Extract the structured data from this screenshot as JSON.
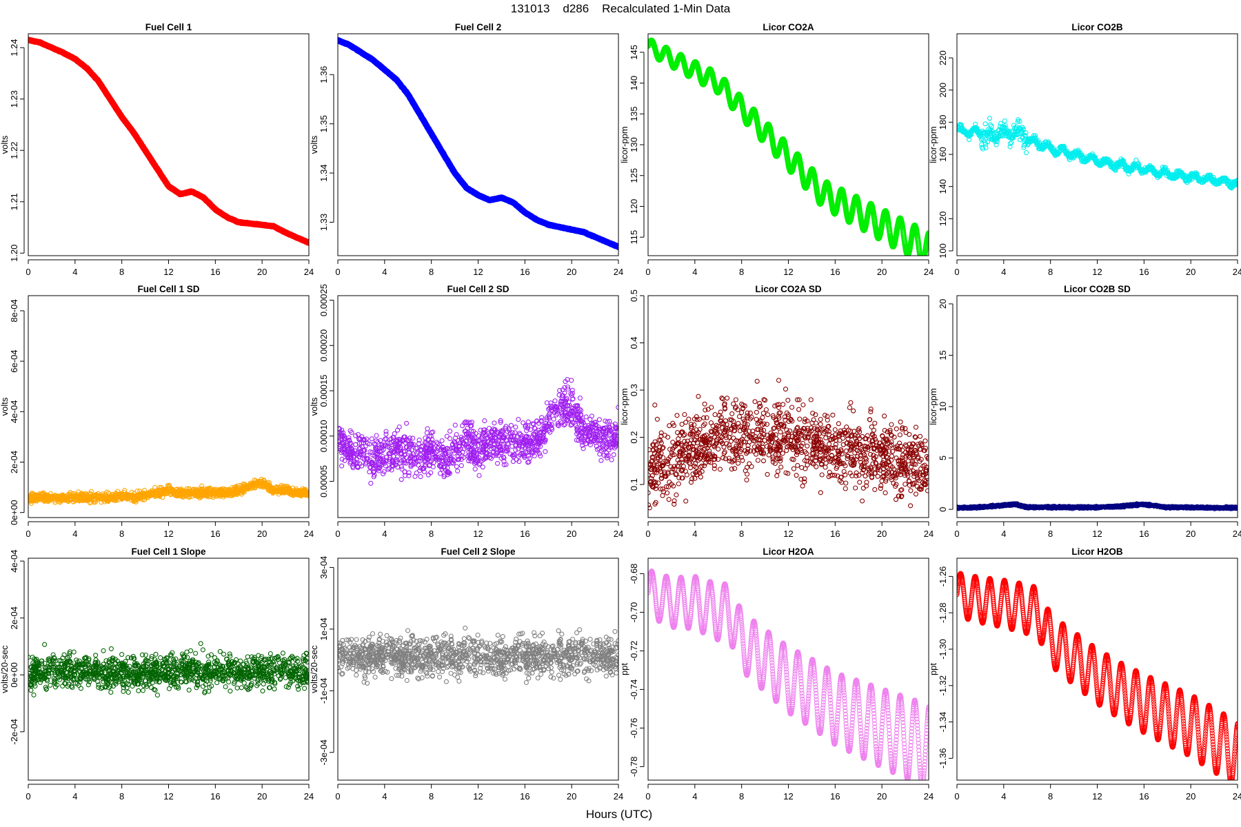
{
  "figure": {
    "title": "131013    d286    Recalculated 1-Min Data",
    "xlabel": "Hours (UTC)"
  },
  "chart_data": [
    {
      "type": "scatter",
      "title": "Fuel Cell 1",
      "ylabel": "volts",
      "color": "#ff0000",
      "xlim": [
        0,
        24
      ],
      "xticks": [
        "0",
        "4",
        "8",
        "12",
        "16",
        "20",
        "24"
      ],
      "ylim": [
        1.1995,
        1.2427
      ],
      "yticks": [
        "1.20",
        "1.21",
        "1.22",
        "1.23",
        "1.24"
      ],
      "ytick_values": [
        1.2,
        1.21,
        1.22,
        1.23,
        1.24
      ],
      "x": [
        0,
        1,
        2,
        3,
        4,
        5,
        6,
        7,
        8,
        9,
        10,
        11,
        12,
        13,
        14,
        15,
        16,
        17,
        18,
        20,
        21,
        22,
        23,
        24
      ],
      "y": [
        1.2415,
        1.241,
        1.24,
        1.239,
        1.2378,
        1.236,
        1.2335,
        1.23,
        1.2265,
        1.2235,
        1.22,
        1.2165,
        1.213,
        1.2115,
        1.212,
        1.2108,
        1.2085,
        1.207,
        1.206,
        1.2055,
        1.2052,
        1.204,
        1.203,
        1.202
      ]
    },
    {
      "type": "scatter",
      "title": "Fuel Cell 2",
      "ylabel": "volts",
      "color": "#0000ff",
      "xlim": [
        0,
        24
      ],
      "xticks": [
        "0",
        "4",
        "8",
        "12",
        "16",
        "20",
        "24"
      ],
      "ylim": [
        1.3232,
        1.3683
      ],
      "yticks": [
        "1.33",
        "1.34",
        "1.35",
        "1.36"
      ],
      "ytick_values": [
        1.33,
        1.34,
        1.35,
        1.36
      ],
      "x": [
        0,
        1,
        2,
        3,
        4,
        5,
        6,
        7,
        8,
        9,
        10,
        11,
        12,
        13,
        14,
        15,
        16,
        17,
        18,
        20,
        21,
        22,
        23,
        24
      ],
      "y": [
        1.367,
        1.366,
        1.3645,
        1.363,
        1.361,
        1.359,
        1.356,
        1.352,
        1.348,
        1.344,
        1.34,
        1.337,
        1.3355,
        1.3345,
        1.335,
        1.334,
        1.332,
        1.3305,
        1.3295,
        1.3285,
        1.328,
        1.327,
        1.326,
        1.325
      ]
    },
    {
      "type": "scatter",
      "title": "Licor CO2A",
      "ylabel": "licor-ppm",
      "color": "#00ee00",
      "xlim": [
        0,
        24
      ],
      "xticks": [
        "0",
        "4",
        "8",
        "12",
        "16",
        "20",
        "24"
      ],
      "ylim": [
        112,
        148
      ],
      "yticks": [
        "115",
        "120",
        "125",
        "130",
        "135",
        "140",
        "145"
      ],
      "ytick_values": [
        115,
        120,
        125,
        130,
        135,
        140,
        145
      ],
      "x": [
        0,
        1,
        2,
        3,
        4,
        5,
        6,
        7,
        8,
        9,
        10,
        11,
        12,
        13,
        14,
        15,
        16,
        17,
        18,
        19,
        20,
        21,
        22,
        23,
        24
      ],
      "y": [
        146,
        145,
        144,
        143,
        142,
        141,
        140,
        138,
        136,
        134,
        132,
        130,
        128,
        126,
        124,
        122,
        121,
        120,
        119,
        118,
        117,
        116,
        115,
        114,
        113
      ]
    },
    {
      "type": "scatter",
      "title": "Licor CO2B",
      "ylabel": "licor-ppm",
      "color": "#00eeee",
      "xlim": [
        0,
        24
      ],
      "xticks": [
        "0",
        "4",
        "8",
        "12",
        "16",
        "20",
        "24"
      ],
      "ylim": [
        97,
        235
      ],
      "yticks": [
        "100",
        "120",
        "140",
        "160",
        "180",
        "200",
        "220"
      ],
      "ytick_values": [
        100,
        120,
        140,
        160,
        180,
        200,
        220
      ],
      "x": [
        0,
        1,
        2,
        3,
        4,
        5,
        6,
        7,
        8,
        9,
        10,
        11,
        12,
        13,
        14,
        15,
        16,
        17,
        18,
        19,
        20,
        21,
        22,
        23,
        24
      ],
      "y": [
        175,
        174,
        173,
        172,
        173,
        174,
        170,
        167,
        164,
        162,
        160,
        158,
        156,
        154,
        153,
        152,
        151,
        149,
        148,
        147,
        146,
        145,
        144,
        143,
        142
      ]
    },
    {
      "type": "scatter",
      "title": "Fuel Cell 1 SD",
      "ylabel": "volts",
      "color": "#ffa500",
      "xlim": [
        0,
        24
      ],
      "xticks": [
        "0",
        "4",
        "8",
        "12",
        "16",
        "20",
        "24"
      ],
      "ylim": [
        -2e-05,
        0.00086
      ],
      "yticks": [
        "0e+00",
        "2e-04",
        "4e-04",
        "6e-04",
        "8e-04"
      ],
      "ytick_values": [
        0,
        0.0002,
        0.0004,
        0.0006,
        0.0008
      ],
      "x": [
        0,
        1,
        2,
        3,
        4,
        5,
        6,
        7,
        8,
        9,
        10,
        11,
        12,
        13,
        14,
        15,
        16,
        17,
        18,
        19,
        20,
        21,
        22,
        23,
        24
      ],
      "y": [
        5e-05,
        5e-05,
        5e-05,
        5e-05,
        5e-05,
        5e-05,
        5e-05,
        5e-05,
        6e-05,
        5e-05,
        6e-05,
        7e-05,
        8e-05,
        7e-05,
        7e-05,
        7e-05,
        7e-05,
        7e-05,
        8e-05,
        0.0001,
        0.00011,
        8e-05,
        8e-05,
        7e-05,
        7e-05
      ]
    },
    {
      "type": "scatter",
      "title": "Fuel Cell 2 SD",
      "ylabel": "volts",
      "color": "#a020f0",
      "xlim": [
        0,
        24
      ],
      "xticks": [
        "0",
        "4",
        "8",
        "12",
        "16",
        "20",
        "24"
      ],
      "ylim": [
        1e-05,
        0.000255
      ],
      "yticks": [
        "0.00005",
        "0.00010",
        "0.00015",
        "0.00020",
        "0.00025"
      ],
      "ytick_values": [
        5e-05,
        0.0001,
        0.00015,
        0.0002,
        0.00025
      ],
      "x": [
        0,
        1,
        2,
        3,
        4,
        5,
        6,
        7,
        8,
        9,
        10,
        11,
        12,
        13,
        14,
        15,
        16,
        17,
        18,
        19,
        20,
        21,
        22,
        23,
        24
      ],
      "y": [
        9e-05,
        8e-05,
        8e-05,
        7e-05,
        8e-05,
        8e-05,
        8e-05,
        7e-05,
        8e-05,
        7e-05,
        8e-05,
        9e-05,
        8e-05,
        9e-05,
        9e-05,
        9e-05,
        9e-05,
        9e-05,
        0.00011,
        0.00013,
        0.00013,
        0.0001,
        0.0001,
        9e-05,
        0.0001
      ]
    },
    {
      "type": "scatter",
      "title": "Licor CO2A SD",
      "ylabel": "licor-ppm",
      "color": "#8b0000",
      "xlim": [
        0,
        24
      ],
      "xticks": [
        "0",
        "4",
        "8",
        "12",
        "16",
        "20",
        "24"
      ],
      "ylim": [
        0.03,
        0.5
      ],
      "yticks": [
        "0.1",
        "0.2",
        "0.3",
        "0.4",
        "0.5"
      ],
      "ytick_values": [
        0.1,
        0.2,
        0.3,
        0.4,
        0.5
      ],
      "x": [
        0,
        2,
        4,
        6,
        8,
        10,
        12,
        14,
        16,
        18,
        20,
        22,
        24
      ],
      "y": [
        0.11,
        0.13,
        0.16,
        0.18,
        0.19,
        0.19,
        0.18,
        0.17,
        0.16,
        0.15,
        0.14,
        0.13,
        0.12
      ]
    },
    {
      "type": "scatter",
      "title": "Licor CO2B SD",
      "ylabel": "licor-ppm",
      "color": "#000080",
      "xlim": [
        0,
        24
      ],
      "xticks": [
        "0",
        "4",
        "8",
        "12",
        "16",
        "20",
        "24"
      ],
      "ylim": [
        -0.8,
        20.8
      ],
      "yticks": [
        "0",
        "5",
        "10",
        "15",
        "20"
      ],
      "ytick_values": [
        0,
        5,
        10,
        15,
        20
      ],
      "x": [
        0,
        2,
        4,
        5,
        6,
        8,
        10,
        12,
        14,
        16,
        18,
        20,
        22,
        24
      ],
      "y": [
        0.15,
        0.2,
        0.4,
        0.5,
        0.2,
        0.2,
        0.2,
        0.2,
        0.3,
        0.5,
        0.2,
        0.2,
        0.15,
        0.15
      ]
    },
    {
      "type": "scatter",
      "title": "Fuel Cell 1 Slope",
      "ylabel": "volts/20-sec",
      "color": "#006400",
      "xlim": [
        0,
        24
      ],
      "xticks": [
        "0",
        "4",
        "8",
        "12",
        "16",
        "20",
        "24"
      ],
      "ylim": [
        -0.00037,
        0.00041
      ],
      "yticks": [
        "-2e-04",
        "0e+00",
        "2e-04",
        "4e-04"
      ],
      "ytick_values": [
        -0.0002,
        0,
        0.0002,
        0.0004
      ],
      "x": [
        0,
        4,
        8,
        12,
        16,
        20,
        24
      ],
      "y": [
        0,
        0,
        0,
        0,
        0,
        0,
        0
      ]
    },
    {
      "type": "scatter",
      "title": "Fuel Cell 2 Slope",
      "ylabel": "volts/20-sec",
      "color": "#808080",
      "xlim": [
        0,
        24
      ],
      "xticks": [
        "0",
        "4",
        "8",
        "12",
        "16",
        "20",
        "24"
      ],
      "ylim": [
        -0.00039,
        0.00033
      ],
      "yticks": [
        "-3e-04",
        "-1e-04",
        "1e-04",
        "3e-04"
      ],
      "ytick_values": [
        -0.0003,
        -0.0001,
        0.0001,
        0.0003
      ],
      "x": [
        0,
        4,
        8,
        12,
        16,
        20,
        24
      ],
      "y": [
        0,
        0,
        0,
        0,
        0,
        0,
        0
      ]
    },
    {
      "type": "scatter",
      "title": "Licor H2OA",
      "ylabel": "ppt",
      "color": "#ee82ee",
      "xlim": [
        0,
        24
      ],
      "xticks": [
        "0",
        "4",
        "8",
        "12",
        "16",
        "20",
        "24"
      ],
      "ylim": [
        -0.787,
        -0.672
      ],
      "yticks": [
        "-0.78",
        "-0.76",
        "-0.74",
        "-0.72",
        "-0.70",
        "-0.68"
      ],
      "ytick_values": [
        -0.78,
        -0.76,
        -0.74,
        -0.72,
        -0.7,
        -0.68
      ],
      "x": [
        0,
        2,
        4,
        6,
        7,
        8,
        10,
        12,
        14,
        16,
        18,
        20,
        22,
        24
      ],
      "y": [
        -0.69,
        -0.695,
        -0.695,
        -0.7,
        -0.7,
        -0.715,
        -0.725,
        -0.735,
        -0.742,
        -0.75,
        -0.755,
        -0.76,
        -0.765,
        -0.77
      ]
    },
    {
      "type": "scatter",
      "title": "Licor H2OB",
      "ylabel": "ppt",
      "color": "#ff0000",
      "xlim": [
        0,
        24
      ],
      "xticks": [
        "0",
        "4",
        "8",
        "12",
        "16",
        "20",
        "24"
      ],
      "ylim": [
        -1.372,
        -1.25
      ],
      "yticks": [
        "-1.36",
        "-1.34",
        "-1.32",
        "-1.30",
        "-1.28",
        "-1.26"
      ],
      "ytick_values": [
        -1.36,
        -1.34,
        -1.32,
        -1.3,
        -1.28,
        -1.26
      ],
      "x": [
        0,
        2,
        4,
        6,
        7,
        8,
        10,
        12,
        14,
        16,
        18,
        20,
        22,
        24
      ],
      "y": [
        -1.27,
        -1.273,
        -1.275,
        -1.278,
        -1.28,
        -1.295,
        -1.305,
        -1.315,
        -1.323,
        -1.33,
        -1.336,
        -1.342,
        -1.35,
        -1.358
      ]
    }
  ]
}
